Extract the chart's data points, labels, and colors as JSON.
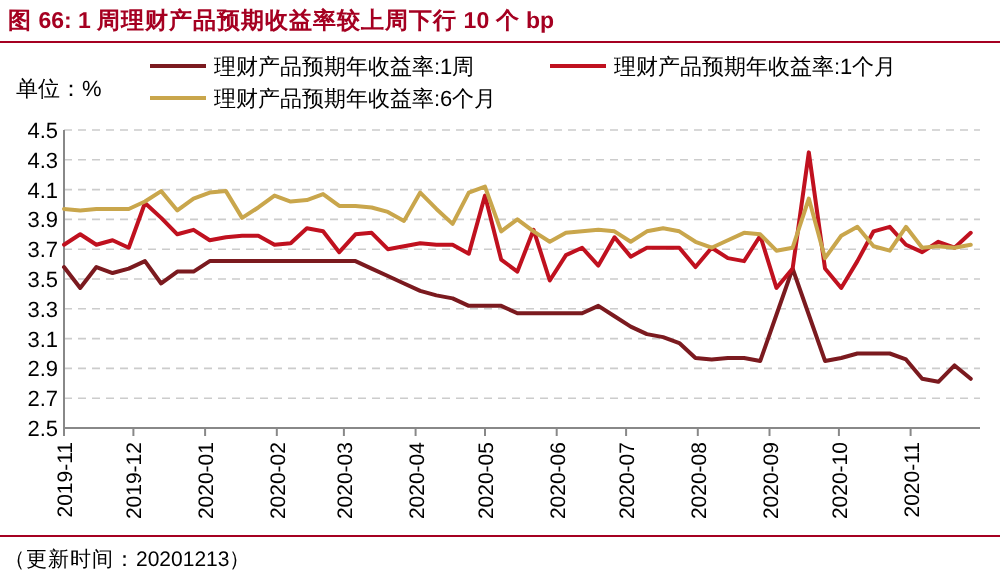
{
  "chart_data": {
    "type": "line",
    "title": "图 66: 1 周理财产品预期收益率较上周下行 10 个 bp",
    "annotations": [
      "单位：%",
      "（更新时间：20201213）"
    ],
    "x": [
      "2019-11-01",
      "2019-11-08",
      "2019-11-15",
      "2019-11-22",
      "2019-11-29",
      "2019-12-06",
      "2019-12-13",
      "2019-12-20",
      "2019-12-27",
      "2020-01-03",
      "2020-01-10",
      "2020-01-17",
      "2020-01-24",
      "2020-01-31",
      "2020-02-07",
      "2020-02-14",
      "2020-02-21",
      "2020-02-28",
      "2020-03-06",
      "2020-03-13",
      "2020-03-20",
      "2020-03-27",
      "2020-04-03",
      "2020-04-10",
      "2020-04-17",
      "2020-04-24",
      "2020-05-01",
      "2020-05-08",
      "2020-05-15",
      "2020-05-22",
      "2020-05-29",
      "2020-06-05",
      "2020-06-12",
      "2020-06-19",
      "2020-06-26",
      "2020-07-03",
      "2020-07-10",
      "2020-07-17",
      "2020-07-24",
      "2020-07-31",
      "2020-08-07",
      "2020-08-14",
      "2020-08-21",
      "2020-08-28",
      "2020-09-04",
      "2020-09-11",
      "2020-09-18",
      "2020-09-25",
      "2020-10-02",
      "2020-10-09",
      "2020-10-16",
      "2020-10-23",
      "2020-10-30",
      "2020-11-06",
      "2020-11-13",
      "2020-11-20",
      "2020-11-27"
    ],
    "series": [
      {
        "name": "理财产品预期年收益率:1周",
        "color": "#7b1a1f",
        "values": [
          3.58,
          3.44,
          3.58,
          3.54,
          3.57,
          3.62,
          3.47,
          3.55,
          3.55,
          3.62,
          3.62,
          3.62,
          3.62,
          3.62,
          3.62,
          3.62,
          3.62,
          3.62,
          3.62,
          3.57,
          3.52,
          3.47,
          3.42,
          3.39,
          3.37,
          3.32,
          3.32,
          3.32,
          3.27,
          3.27,
          3.27,
          3.27,
          3.27,
          3.32,
          3.25,
          3.18,
          3.13,
          3.11,
          3.07,
          2.97,
          2.96,
          2.97,
          2.97,
          2.95,
          3.26,
          3.57,
          3.26,
          2.95,
          2.97,
          3.0,
          3.0,
          3.0,
          2.96,
          2.83,
          2.81,
          2.92,
          2.83
        ]
      },
      {
        "name": "理财产品预期年收益率:1个月",
        "color": "#c0111f",
        "values": [
          3.73,
          3.8,
          3.73,
          3.76,
          3.71,
          4.01,
          3.91,
          3.8,
          3.83,
          3.76,
          3.78,
          3.79,
          3.79,
          3.73,
          3.74,
          3.84,
          3.82,
          3.68,
          3.8,
          3.81,
          3.7,
          3.72,
          3.74,
          3.73,
          3.73,
          3.67,
          4.06,
          3.63,
          3.55,
          3.83,
          3.49,
          3.66,
          3.71,
          3.59,
          3.78,
          3.65,
          3.71,
          3.71,
          3.71,
          3.58,
          3.71,
          3.64,
          3.62,
          3.79,
          3.44,
          3.57,
          4.35,
          3.57,
          3.44,
          3.62,
          3.82,
          3.85,
          3.73,
          3.68,
          3.75,
          3.71,
          3.81
        ]
      },
      {
        "name": "理财产品预期年收益率:6个月",
        "color": "#c9a64c",
        "values": [
          3.97,
          3.96,
          3.97,
          3.97,
          3.97,
          4.02,
          4.09,
          3.96,
          4.04,
          4.08,
          4.09,
          3.91,
          3.98,
          4.06,
          4.02,
          4.03,
          4.07,
          3.99,
          3.99,
          3.98,
          3.95,
          3.89,
          4.08,
          3.97,
          3.87,
          4.08,
          4.12,
          3.82,
          3.9,
          3.82,
          3.75,
          3.81,
          3.82,
          3.83,
          3.82,
          3.75,
          3.82,
          3.84,
          3.82,
          3.75,
          3.71,
          3.76,
          3.81,
          3.8,
          3.69,
          3.71,
          4.04,
          3.64,
          3.79,
          3.85,
          3.72,
          3.69,
          3.85,
          3.71,
          3.72,
          3.71,
          3.73
        ]
      }
    ],
    "xlim": [
      "2019-11-01",
      "2020-12-01"
    ],
    "xticks": [
      "2019-11",
      "2019-12",
      "2020-01",
      "2020-02",
      "2020-03",
      "2020-04",
      "2020-05",
      "2020-06",
      "2020-07",
      "2020-08",
      "2020-09",
      "2020-10",
      "2020-11"
    ],
    "ylim": [
      2.5,
      4.5
    ],
    "yticks": [
      2.5,
      2.7,
      2.9,
      3.1,
      3.3,
      3.5,
      3.7,
      3.9,
      4.1,
      4.3,
      4.5
    ],
    "grid": "y",
    "legend": "top",
    "marker": "none",
    "line_style": "solid"
  }
}
